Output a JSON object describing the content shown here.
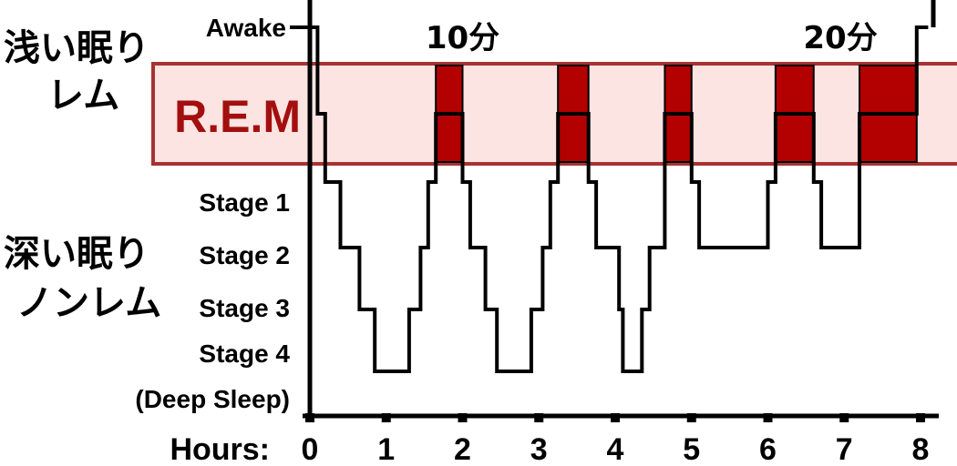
{
  "chart_data": {
    "type": "line",
    "title": "",
    "xlabel": "Hours:",
    "ylabel": "",
    "x_ticks": [
      "0",
      "1",
      "2",
      "3",
      "4",
      "5",
      "6",
      "7",
      "8"
    ],
    "xlim": [
      0,
      8
    ],
    "y_stages": [
      {
        "key": "awake",
        "label": "Awake"
      },
      {
        "key": "rem",
        "label": "R.E.M"
      },
      {
        "key": "s1",
        "label": "Stage 1"
      },
      {
        "key": "s2",
        "label": "Stage 2"
      },
      {
        "key": "s3",
        "label": "Stage 3"
      },
      {
        "key": "s4",
        "label": "Stage 4"
      },
      {
        "key": "s4b",
        "label": "(Deep Sleep)"
      }
    ],
    "hypnogram": [
      [
        0,
        "awake"
      ],
      [
        0.1,
        "awake"
      ],
      [
        0.1,
        "rem"
      ],
      [
        0.2,
        "rem"
      ],
      [
        0.2,
        "s1"
      ],
      [
        0.4,
        "s1"
      ],
      [
        0.4,
        "s2"
      ],
      [
        0.65,
        "s2"
      ],
      [
        0.65,
        "s3"
      ],
      [
        0.85,
        "s3"
      ],
      [
        0.85,
        "s4"
      ],
      [
        1.3,
        "s4"
      ],
      [
        1.3,
        "s3"
      ],
      [
        1.45,
        "s3"
      ],
      [
        1.45,
        "s2"
      ],
      [
        1.55,
        "s2"
      ],
      [
        1.55,
        "s1"
      ],
      [
        1.65,
        "s1"
      ],
      [
        1.65,
        "rem"
      ],
      [
        2.0,
        "rem"
      ],
      [
        2.0,
        "s1"
      ],
      [
        2.1,
        "s1"
      ],
      [
        2.1,
        "s2"
      ],
      [
        2.3,
        "s2"
      ],
      [
        2.3,
        "s3"
      ],
      [
        2.45,
        "s3"
      ],
      [
        2.45,
        "s4"
      ],
      [
        2.9,
        "s4"
      ],
      [
        2.9,
        "s3"
      ],
      [
        3.05,
        "s3"
      ],
      [
        3.05,
        "s2"
      ],
      [
        3.15,
        "s2"
      ],
      [
        3.15,
        "s1"
      ],
      [
        3.25,
        "s1"
      ],
      [
        3.25,
        "rem"
      ],
      [
        3.65,
        "rem"
      ],
      [
        3.65,
        "s1"
      ],
      [
        3.75,
        "s1"
      ],
      [
        3.75,
        "s2"
      ],
      [
        4.05,
        "s2"
      ],
      [
        4.05,
        "s3"
      ],
      [
        4.1,
        "s3"
      ],
      [
        4.1,
        "s4"
      ],
      [
        4.35,
        "s4"
      ],
      [
        4.35,
        "s3"
      ],
      [
        4.45,
        "s3"
      ],
      [
        4.45,
        "s2"
      ],
      [
        4.65,
        "s2"
      ],
      [
        4.65,
        "rem"
      ],
      [
        5.0,
        "rem"
      ],
      [
        5.0,
        "s1"
      ],
      [
        5.1,
        "s1"
      ],
      [
        5.1,
        "s2"
      ],
      [
        6.0,
        "s2"
      ],
      [
        6.0,
        "s1"
      ],
      [
        6.1,
        "s1"
      ],
      [
        6.1,
        "rem"
      ],
      [
        6.6,
        "rem"
      ],
      [
        6.6,
        "s1"
      ],
      [
        6.7,
        "s1"
      ],
      [
        6.7,
        "s2"
      ],
      [
        7.2,
        "s2"
      ],
      [
        7.2,
        "rem"
      ],
      [
        7.95,
        "rem"
      ],
      [
        7.95,
        "awake"
      ],
      [
        8.1,
        "awake"
      ]
    ],
    "rem_blocks": [
      [
        1.65,
        2.0
      ],
      [
        3.25,
        3.65
      ],
      [
        4.65,
        5.0
      ],
      [
        6.1,
        6.6
      ],
      [
        7.2,
        7.95
      ]
    ],
    "annotations": [
      {
        "text": "10分",
        "x": 2.0
      },
      {
        "text": "20分",
        "x": 6.95
      }
    ],
    "side_labels": {
      "light_line1": "浅い眠り",
      "light_line2": "レム",
      "deep_line1": "深い眠り",
      "deep_line2": "ノンレム"
    },
    "colors": {
      "rem_band_fill": "#fbe4e2",
      "rem_band_border": "#a83232",
      "rem_block": "#b30000",
      "rem_label": "#a30f0f",
      "line": "#000000"
    }
  }
}
